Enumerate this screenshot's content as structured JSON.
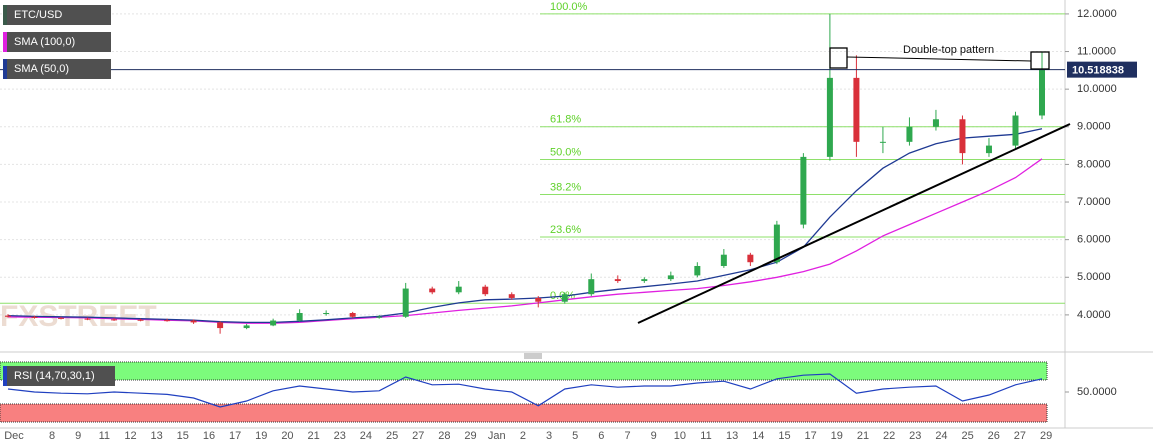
{
  "chart_data": [
    {
      "type": "candlestick",
      "series": [
        {
          "name": "ETC/USD",
          "color": "#3a5a4a",
          "up_color": "#2fa84f",
          "down_color": "#d9303a",
          "open": [
            3.98,
            3.95,
            3.92,
            3.9,
            3.88,
            3.87,
            3.86,
            3.85,
            3.8,
            3.65,
            3.72,
            3.85,
            4.05,
            4.05,
            3.95,
            3.95,
            4.7,
            4.6,
            4.75,
            4.55,
            4.45,
            4.35,
            4.55,
            4.95,
            4.9,
            4.95,
            5.05,
            5.3,
            5.6,
            5.4,
            6.4,
            8.2,
            10.3,
            8.6,
            8.6,
            9.0,
            9.2,
            8.3,
            8.5,
            9.3
          ],
          "high": [
            4.02,
            3.98,
            3.95,
            3.93,
            3.92,
            3.9,
            3.9,
            3.88,
            3.83,
            3.76,
            3.9,
            4.15,
            4.12,
            4.08,
            4.0,
            4.85,
            4.75,
            4.9,
            4.8,
            4.6,
            4.5,
            4.6,
            5.1,
            5.05,
            5.0,
            5.15,
            5.4,
            5.75,
            5.65,
            6.5,
            8.3,
            12.0,
            10.9,
            9.0,
            9.25,
            9.45,
            9.3,
            8.7,
            9.4,
            11.0
          ],
          "low": [
            3.93,
            3.9,
            3.88,
            3.86,
            3.84,
            3.83,
            3.82,
            3.76,
            3.5,
            3.62,
            3.7,
            3.82,
            3.98,
            3.92,
            3.9,
            3.92,
            4.55,
            4.55,
            4.5,
            4.4,
            4.2,
            4.3,
            4.5,
            4.85,
            4.85,
            4.9,
            5.0,
            5.25,
            5.3,
            5.35,
            6.3,
            8.1,
            8.2,
            8.3,
            8.5,
            8.9,
            8.0,
            8.2,
            8.4,
            9.2
          ],
          "close": [
            3.95,
            3.92,
            3.9,
            3.88,
            3.87,
            3.86,
            3.85,
            3.8,
            3.65,
            3.72,
            3.85,
            4.05,
            4.05,
            3.95,
            3.95,
            4.7,
            4.6,
            4.75,
            4.55,
            4.45,
            4.35,
            4.55,
            4.95,
            4.9,
            4.95,
            5.05,
            5.3,
            5.6,
            5.4,
            6.4,
            8.2,
            10.3,
            8.6,
            8.6,
            9.0,
            9.2,
            8.3,
            8.5,
            9.3,
            10.52
          ]
        },
        {
          "name": "SMA (100,0)",
          "color": "#e020e0",
          "values": [
            3.95,
            3.94,
            3.93,
            3.92,
            3.9,
            3.88,
            3.86,
            3.84,
            3.8,
            3.78,
            3.78,
            3.8,
            3.85,
            3.9,
            3.94,
            3.98,
            4.05,
            4.12,
            4.18,
            4.24,
            4.32,
            4.4,
            4.48,
            4.55,
            4.6,
            4.65,
            4.7,
            4.78,
            4.88,
            5.0,
            5.15,
            5.35,
            5.7,
            6.1,
            6.4,
            6.7,
            7.0,
            7.3,
            7.65,
            8.15
          ]
        },
        {
          "name": "SMA (50,0)",
          "color": "#1f3a93",
          "values": [
            3.98,
            3.96,
            3.95,
            3.94,
            3.92,
            3.9,
            3.88,
            3.86,
            3.82,
            3.8,
            3.8,
            3.83,
            3.87,
            3.92,
            3.96,
            4.05,
            4.2,
            4.32,
            4.4,
            4.42,
            4.45,
            4.5,
            4.6,
            4.68,
            4.75,
            4.82,
            4.9,
            5.05,
            5.2,
            5.4,
            5.8,
            6.6,
            7.3,
            7.9,
            8.3,
            8.55,
            8.7,
            8.75,
            8.8,
            8.95
          ]
        }
      ],
      "ylim": [
        3.12,
        12.37
      ],
      "yticks": [
        {
          "value": 4,
          "label": "4.0000"
        },
        {
          "value": 5,
          "label": "5.0000"
        },
        {
          "value": 6,
          "label": "6.0000"
        },
        {
          "value": 7,
          "label": "7.0000"
        },
        {
          "value": 8,
          "label": "8.0000"
        },
        {
          "value": 9,
          "label": "9.0000"
        },
        {
          "value": 10,
          "label": "10.0000"
        },
        {
          "value": 11,
          "label": "11.0000"
        },
        {
          "value": 12,
          "label": "12.0000"
        }
      ],
      "grid": true,
      "last_price": 10.518838,
      "fib_levels": [
        {
          "value": 12.0,
          "label": "100.0%"
        },
        {
          "value": 9.0,
          "label": "61.8%"
        },
        {
          "value": 8.13,
          "label": "50.0%"
        },
        {
          "value": 7.2,
          "label": "38.2%"
        },
        {
          "value": 6.07,
          "label": "23.6%"
        },
        {
          "value": 4.31,
          "label": "0.0%"
        }
      ],
      "annotation": "Double-top pattern",
      "watermark": "FXSTREET",
      "xticks": [
        "Dec",
        "8",
        "9",
        "11",
        "12",
        "13",
        "15",
        "16",
        "17",
        "19",
        "20",
        "21",
        "23",
        "24",
        "25",
        "27",
        "28",
        "29",
        "Jan",
        "2",
        "3",
        "5",
        "6",
        "7",
        "9",
        "10",
        "11",
        "13",
        "14",
        "15",
        "17",
        "19",
        "21",
        "22",
        "23",
        "24",
        "25",
        "26",
        "27",
        "29"
      ]
    },
    {
      "type": "line",
      "series": [
        {
          "name": "RSI (14,70,30,1)",
          "color": "#2040c0",
          "values": [
            55,
            50,
            48,
            47,
            50,
            48,
            46,
            40,
            25,
            35,
            52,
            60,
            55,
            50,
            52,
            75,
            62,
            63,
            55,
            50,
            27,
            55,
            62,
            58,
            60,
            60,
            65,
            68,
            55,
            72,
            78,
            80,
            48,
            55,
            58,
            60,
            35,
            45,
            62,
            72
          ]
        }
      ],
      "ylim": [
        0,
        100
      ],
      "yticks": [
        {
          "value": 50,
          "label": "50.0000"
        }
      ],
      "bands": [
        {
          "from": 70,
          "to": 100,
          "color": "#7cfc7c"
        },
        {
          "from": 0,
          "to": 30,
          "color": "#f88080"
        }
      ]
    }
  ]
}
